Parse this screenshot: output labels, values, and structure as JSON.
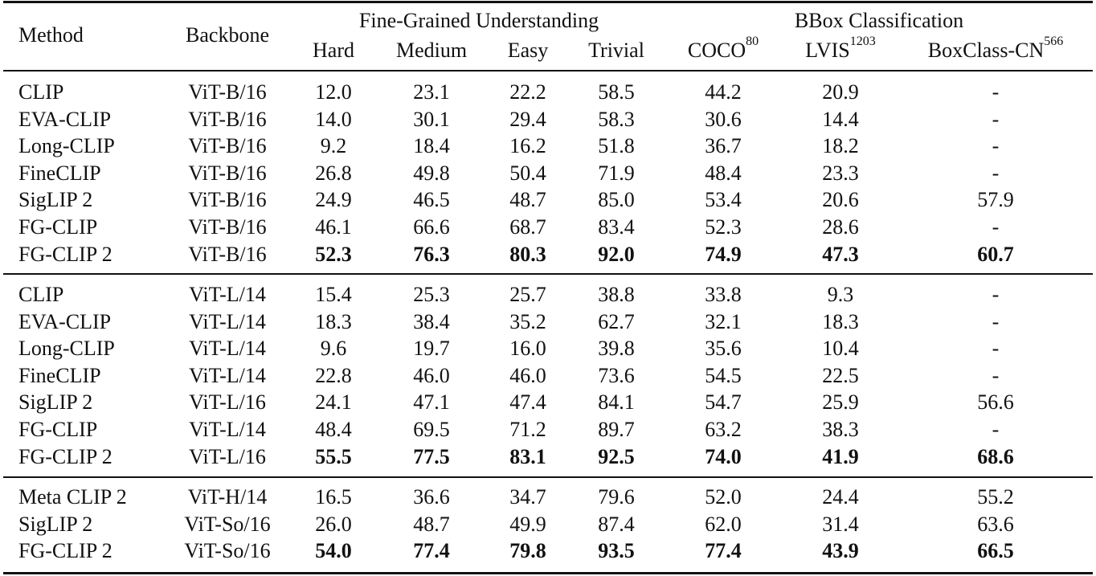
{
  "table": {
    "header": {
      "method": "Method",
      "backbone": "Backbone",
      "groups": [
        {
          "label": "Fine-Grained Understanding",
          "columns": [
            "Hard",
            "Medium",
            "Easy",
            "Trivial"
          ]
        },
        {
          "label": "BBox Classification",
          "columns": [
            {
              "name": "COCO",
              "sup": "80"
            },
            {
              "name": "LVIS",
              "sup": "1203"
            },
            {
              "name": "BoxClass-CN",
              "sup": "566"
            }
          ]
        }
      ]
    },
    "sections": [
      {
        "rows": [
          {
            "method": "CLIP",
            "backbone": "ViT-B/16",
            "values": [
              "12.0",
              "23.1",
              "22.2",
              "58.5",
              "44.2",
              "20.9",
              "-"
            ],
            "bold": false
          },
          {
            "method": "EVA-CLIP",
            "backbone": "ViT-B/16",
            "values": [
              "14.0",
              "30.1",
              "29.4",
              "58.3",
              "30.6",
              "14.4",
              "-"
            ],
            "bold": false
          },
          {
            "method": "Long-CLIP",
            "backbone": "ViT-B/16",
            "values": [
              "9.2",
              "18.4",
              "16.2",
              "51.8",
              "36.7",
              "18.2",
              "-"
            ],
            "bold": false
          },
          {
            "method": "FineCLIP",
            "backbone": "ViT-B/16",
            "values": [
              "26.8",
              "49.8",
              "50.4",
              "71.9",
              "48.4",
              "23.3",
              "-"
            ],
            "bold": false
          },
          {
            "method": "SigLIP 2",
            "backbone": "ViT-B/16",
            "values": [
              "24.9",
              "46.5",
              "48.7",
              "85.0",
              "53.4",
              "20.6",
              "57.9"
            ],
            "bold": false
          },
          {
            "method": "FG-CLIP",
            "backbone": "ViT-B/16",
            "values": [
              "46.1",
              "66.6",
              "68.7",
              "83.4",
              "52.3",
              "28.6",
              "-"
            ],
            "bold": false
          },
          {
            "method": "FG-CLIP 2",
            "backbone": "ViT-B/16",
            "values": [
              "52.3",
              "76.3",
              "80.3",
              "92.0",
              "74.9",
              "47.3",
              "60.7"
            ],
            "bold": true
          }
        ]
      },
      {
        "rows": [
          {
            "method": "CLIP",
            "backbone": "ViT-L/14",
            "values": [
              "15.4",
              "25.3",
              "25.7",
              "38.8",
              "33.8",
              "9.3",
              "-"
            ],
            "bold": false
          },
          {
            "method": "EVA-CLIP",
            "backbone": "ViT-L/14",
            "values": [
              "18.3",
              "38.4",
              "35.2",
              "62.7",
              "32.1",
              "18.3",
              "-"
            ],
            "bold": false
          },
          {
            "method": "Long-CLIP",
            "backbone": "ViT-L/14",
            "values": [
              "9.6",
              "19.7",
              "16.0",
              "39.8",
              "35.6",
              "10.4",
              "-"
            ],
            "bold": false
          },
          {
            "method": "FineCLIP",
            "backbone": "ViT-L/14",
            "values": [
              "22.8",
              "46.0",
              "46.0",
              "73.6",
              "54.5",
              "22.5",
              "-"
            ],
            "bold": false
          },
          {
            "method": "SigLIP 2",
            "backbone": "ViT-L/16",
            "values": [
              "24.1",
              "47.1",
              "47.4",
              "84.1",
              "54.7",
              "25.9",
              "56.6"
            ],
            "bold": false
          },
          {
            "method": "FG-CLIP",
            "backbone": "ViT-L/14",
            "values": [
              "48.4",
              "69.5",
              "71.2",
              "89.7",
              "63.2",
              "38.3",
              "-"
            ],
            "bold": false
          },
          {
            "method": "FG-CLIP 2",
            "backbone": "ViT-L/16",
            "values": [
              "55.5",
              "77.5",
              "83.1",
              "92.5",
              "74.0",
              "41.9",
              "68.6"
            ],
            "bold": true
          }
        ]
      },
      {
        "rows": [
          {
            "method": "Meta CLIP 2",
            "backbone": "ViT-H/14",
            "values": [
              "16.5",
              "36.6",
              "34.7",
              "79.6",
              "52.0",
              "24.4",
              "55.2"
            ],
            "bold": false
          },
          {
            "method": "SigLIP 2",
            "backbone": "ViT-So/16",
            "values": [
              "26.0",
              "48.7",
              "49.9",
              "87.4",
              "62.0",
              "31.4",
              "63.6"
            ],
            "bold": false
          },
          {
            "method": "FG-CLIP 2",
            "backbone": "ViT-So/16",
            "values": [
              "54.0",
              "77.4",
              "79.8",
              "93.5",
              "77.4",
              "43.9",
              "66.5"
            ],
            "bold": true
          }
        ]
      }
    ]
  }
}
